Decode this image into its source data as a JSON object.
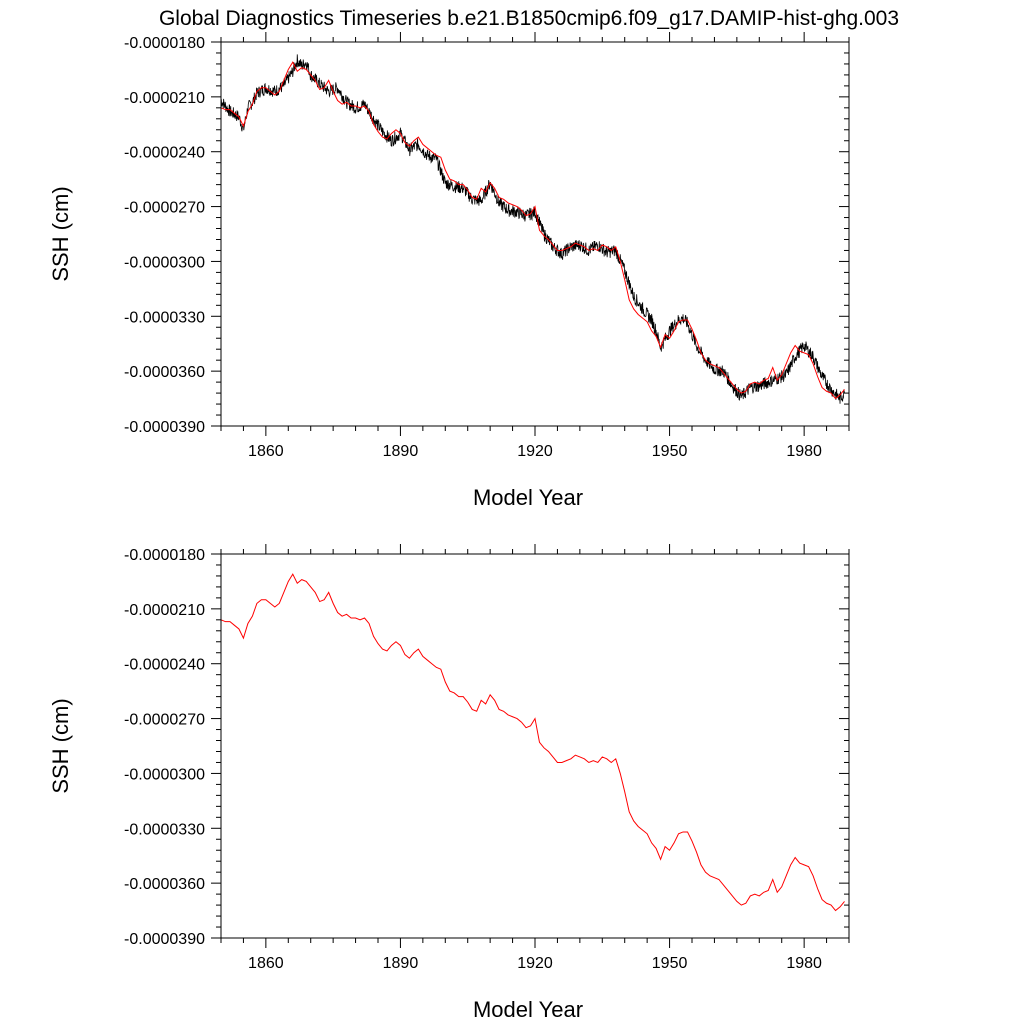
{
  "title": "Global Diagnostics Timeseries b.e21.B1850cmip6.f09_g17.DAMIP-hist-ghg.003",
  "colors": {
    "raw": "#000000",
    "smoothed": "#ff0000",
    "axes": "#000000",
    "background": "#ffffff"
  },
  "chart_data": [
    {
      "type": "line",
      "xlabel": "Model Year",
      "ylabel": "SSH (cm)",
      "xlim": [
        1850,
        1990
      ],
      "ylim": [
        -3.9e-05,
        -1.8e-05
      ],
      "xticks": [
        1860,
        1890,
        1920,
        1950,
        1980
      ],
      "xtick_labels": [
        "1860",
        "1890",
        "1920",
        "1950",
        "1980"
      ],
      "yticks": [
        -1.8e-05,
        -2.1e-05,
        -2.4e-05,
        -2.7e-05,
        -3e-05,
        -3.3e-05,
        -3.6e-05,
        -3.9e-05
      ],
      "ytick_labels": [
        "-0.0000180",
        "-0.0000210",
        "-0.0000240",
        "-0.0000270",
        "-0.0000300",
        "-0.0000330",
        "-0.0000360",
        "-0.0000390"
      ],
      "grid": false,
      "series": [
        {
          "color": "#000000",
          "style": "monthly",
          "x": [
            1850,
            1852,
            1854,
            1855,
            1856,
            1857,
            1858,
            1860,
            1862,
            1864,
            1866,
            1867,
            1868,
            1869,
            1870,
            1872,
            1874,
            1876,
            1878,
            1880,
            1882,
            1884,
            1886,
            1888,
            1890,
            1892,
            1894,
            1896,
            1898,
            1900,
            1902,
            1904,
            1906,
            1908,
            1910,
            1912,
            1914,
            1916,
            1918,
            1920,
            1922,
            1924,
            1926,
            1928,
            1930,
            1932,
            1934,
            1936,
            1938,
            1940,
            1942,
            1944,
            1946,
            1947,
            1948,
            1950,
            1952,
            1953,
            1954,
            1956,
            1958,
            1960,
            1962,
            1964,
            1966,
            1968,
            1970,
            1972,
            1974,
            1976,
            1978,
            1980,
            1982,
            1984,
            1986,
            1988,
            1989
          ],
          "y": [
            -2.12e-05,
            -2.18e-05,
            -2.21e-05,
            -2.28e-05,
            -2.16e-05,
            -2.13e-05,
            -2.08e-05,
            -2.05e-05,
            -2.07e-05,
            -2.04e-05,
            -1.96e-05,
            -1.9e-05,
            -1.93e-05,
            -1.91e-05,
            -1.98e-05,
            -2.03e-05,
            -2.07e-05,
            -2.05e-05,
            -2.13e-05,
            -2.16e-05,
            -2.14e-05,
            -2.22e-05,
            -2.29e-05,
            -2.34e-05,
            -2.3e-05,
            -2.39e-05,
            -2.36e-05,
            -2.42e-05,
            -2.44e-05,
            -2.57e-05,
            -2.59e-05,
            -2.6e-05,
            -2.66e-05,
            -2.67e-05,
            -2.57e-05,
            -2.68e-05,
            -2.72e-05,
            -2.73e-05,
            -2.75e-05,
            -2.73e-05,
            -2.85e-05,
            -2.92e-05,
            -2.96e-05,
            -2.92e-05,
            -2.91e-05,
            -2.94e-05,
            -2.91e-05,
            -2.95e-05,
            -2.94e-05,
            -3.05e-05,
            -3.19e-05,
            -3.26e-05,
            -3.32e-05,
            -3.38e-05,
            -3.47e-05,
            -3.38e-05,
            -3.32e-05,
            -3.31e-05,
            -3.34e-05,
            -3.46e-05,
            -3.54e-05,
            -3.59e-05,
            -3.6e-05,
            -3.68e-05,
            -3.74e-05,
            -3.69e-05,
            -3.68e-05,
            -3.66e-05,
            -3.64e-05,
            -3.62e-05,
            -3.52e-05,
            -3.46e-05,
            -3.52e-05,
            -3.63e-05,
            -3.7e-05,
            -3.75e-05,
            -3.72e-05
          ]
        },
        {
          "color": "#ff0000",
          "style": "annual",
          "x": [
            1850,
            1851,
            1852,
            1853,
            1854,
            1855,
            1856,
            1857,
            1858,
            1859,
            1860,
            1861,
            1862,
            1863,
            1864,
            1865,
            1866,
            1867,
            1868,
            1869,
            1870,
            1871,
            1872,
            1873,
            1874,
            1875,
            1876,
            1877,
            1878,
            1879,
            1880,
            1881,
            1882,
            1883,
            1884,
            1885,
            1886,
            1887,
            1888,
            1889,
            1890,
            1891,
            1892,
            1893,
            1894,
            1895,
            1896,
            1897,
            1898,
            1899,
            1900,
            1901,
            1902,
            1903,
            1904,
            1905,
            1906,
            1907,
            1908,
            1909,
            1910,
            1911,
            1912,
            1913,
            1914,
            1915,
            1916,
            1917,
            1918,
            1919,
            1920,
            1921,
            1922,
            1923,
            1924,
            1925,
            1926,
            1927,
            1928,
            1929,
            1930,
            1931,
            1932,
            1933,
            1934,
            1935,
            1936,
            1937,
            1938,
            1939,
            1940,
            1941,
            1942,
            1943,
            1944,
            1945,
            1946,
            1947,
            1948,
            1949,
            1950,
            1951,
            1952,
            1953,
            1954,
            1955,
            1956,
            1957,
            1958,
            1959,
            1960,
            1961,
            1962,
            1963,
            1964,
            1965,
            1966,
            1967,
            1968,
            1969,
            1970,
            1971,
            1972,
            1973,
            1974,
            1975,
            1976,
            1977,
            1978,
            1979,
            1980,
            1981,
            1982,
            1983,
            1984,
            1985,
            1986,
            1987,
            1988,
            1989
          ],
          "y": [
            -2.16e-05,
            -2.17e-05,
            -2.17e-05,
            -2.19e-05,
            -2.21e-05,
            -2.26e-05,
            -2.18e-05,
            -2.14e-05,
            -2.07e-05,
            -2.05e-05,
            -2.05e-05,
            -2.07e-05,
            -2.09e-05,
            -2.07e-05,
            -2.01e-05,
            -1.95e-05,
            -1.91e-05,
            -1.96e-05,
            -1.94e-05,
            -1.95e-05,
            -1.98e-05,
            -2.01e-05,
            -2.06e-05,
            -2.05e-05,
            -2.01e-05,
            -2.07e-05,
            -2.12e-05,
            -2.14e-05,
            -2.13e-05,
            -2.15e-05,
            -2.15e-05,
            -2.16e-05,
            -2.15e-05,
            -2.18e-05,
            -2.25e-05,
            -2.29e-05,
            -2.32e-05,
            -2.33e-05,
            -2.3e-05,
            -2.28e-05,
            -2.3e-05,
            -2.35e-05,
            -2.37e-05,
            -2.34e-05,
            -2.32e-05,
            -2.36e-05,
            -2.38e-05,
            -2.4e-05,
            -2.42e-05,
            -2.43e-05,
            -2.5e-05,
            -2.55e-05,
            -2.56e-05,
            -2.58e-05,
            -2.58e-05,
            -2.61e-05,
            -2.65e-05,
            -2.66e-05,
            -2.6e-05,
            -2.62e-05,
            -2.57e-05,
            -2.6e-05,
            -2.65e-05,
            -2.66e-05,
            -2.68e-05,
            -2.69e-05,
            -2.7e-05,
            -2.72e-05,
            -2.75e-05,
            -2.74e-05,
            -2.7e-05,
            -2.83e-05,
            -2.86e-05,
            -2.88e-05,
            -2.91e-05,
            -2.94e-05,
            -2.94e-05,
            -2.93e-05,
            -2.92e-05,
            -2.9e-05,
            -2.91e-05,
            -2.92e-05,
            -2.94e-05,
            -2.93e-05,
            -2.94e-05,
            -2.91e-05,
            -2.92e-05,
            -2.94e-05,
            -2.92e-05,
            -3e-05,
            -3.1e-05,
            -3.21e-05,
            -3.26e-05,
            -3.29e-05,
            -3.31e-05,
            -3.33e-05,
            -3.38e-05,
            -3.41e-05,
            -3.47e-05,
            -3.4e-05,
            -3.42e-05,
            -3.38e-05,
            -3.33e-05,
            -3.32e-05,
            -3.32e-05,
            -3.37e-05,
            -3.43e-05,
            -3.5e-05,
            -3.54e-05,
            -3.56e-05,
            -3.57e-05,
            -3.58e-05,
            -3.61e-05,
            -3.64e-05,
            -3.67e-05,
            -3.7e-05,
            -3.72e-05,
            -3.71e-05,
            -3.67e-05,
            -3.66e-05,
            -3.67e-05,
            -3.65e-05,
            -3.64e-05,
            -3.58e-05,
            -3.65e-05,
            -3.62e-05,
            -3.56e-05,
            -3.5e-05,
            -3.46e-05,
            -3.49e-05,
            -3.5e-05,
            -3.51e-05,
            -3.56e-05,
            -3.63e-05,
            -3.69e-05,
            -3.71e-05,
            -3.72e-05,
            -3.75e-05,
            -3.73e-05,
            -3.7e-05
          ]
        }
      ]
    },
    {
      "type": "line",
      "xlabel": "Model Year",
      "ylabel": "SSH (cm)",
      "xlim": [
        1850,
        1990
      ],
      "ylim": [
        -3.9e-05,
        -1.8e-05
      ],
      "xticks": [
        1860,
        1890,
        1920,
        1950,
        1980
      ],
      "xtick_labels": [
        "1860",
        "1890",
        "1920",
        "1950",
        "1980"
      ],
      "yticks": [
        -1.8e-05,
        -2.1e-05,
        -2.4e-05,
        -2.7e-05,
        -3e-05,
        -3.3e-05,
        -3.6e-05,
        -3.9e-05
      ],
      "ytick_labels": [
        "-0.0000180",
        "-0.0000210",
        "-0.0000240",
        "-0.0000270",
        "-0.0000300",
        "-0.0000330",
        "-0.0000360",
        "-0.0000390"
      ],
      "grid": false,
      "series": [
        {
          "color": "#ff0000",
          "style": "annual",
          "x": [
            1850,
            1851,
            1852,
            1853,
            1854,
            1855,
            1856,
            1857,
            1858,
            1859,
            1860,
            1861,
            1862,
            1863,
            1864,
            1865,
            1866,
            1867,
            1868,
            1869,
            1870,
            1871,
            1872,
            1873,
            1874,
            1875,
            1876,
            1877,
            1878,
            1879,
            1880,
            1881,
            1882,
            1883,
            1884,
            1885,
            1886,
            1887,
            1888,
            1889,
            1890,
            1891,
            1892,
            1893,
            1894,
            1895,
            1896,
            1897,
            1898,
            1899,
            1900,
            1901,
            1902,
            1903,
            1904,
            1905,
            1906,
            1907,
            1908,
            1909,
            1910,
            1911,
            1912,
            1913,
            1914,
            1915,
            1916,
            1917,
            1918,
            1919,
            1920,
            1921,
            1922,
            1923,
            1924,
            1925,
            1926,
            1927,
            1928,
            1929,
            1930,
            1931,
            1932,
            1933,
            1934,
            1935,
            1936,
            1937,
            1938,
            1939,
            1940,
            1941,
            1942,
            1943,
            1944,
            1945,
            1946,
            1947,
            1948,
            1949,
            1950,
            1951,
            1952,
            1953,
            1954,
            1955,
            1956,
            1957,
            1958,
            1959,
            1960,
            1961,
            1962,
            1963,
            1964,
            1965,
            1966,
            1967,
            1968,
            1969,
            1970,
            1971,
            1972,
            1973,
            1974,
            1975,
            1976,
            1977,
            1978,
            1979,
            1980,
            1981,
            1982,
            1983,
            1984,
            1985,
            1986,
            1987,
            1988,
            1989
          ],
          "y": [
            -2.16e-05,
            -2.17e-05,
            -2.17e-05,
            -2.19e-05,
            -2.21e-05,
            -2.26e-05,
            -2.18e-05,
            -2.14e-05,
            -2.07e-05,
            -2.05e-05,
            -2.05e-05,
            -2.07e-05,
            -2.09e-05,
            -2.07e-05,
            -2.01e-05,
            -1.95e-05,
            -1.91e-05,
            -1.96e-05,
            -1.94e-05,
            -1.95e-05,
            -1.98e-05,
            -2.01e-05,
            -2.06e-05,
            -2.05e-05,
            -2.01e-05,
            -2.07e-05,
            -2.12e-05,
            -2.14e-05,
            -2.13e-05,
            -2.15e-05,
            -2.15e-05,
            -2.16e-05,
            -2.15e-05,
            -2.18e-05,
            -2.25e-05,
            -2.29e-05,
            -2.32e-05,
            -2.33e-05,
            -2.3e-05,
            -2.28e-05,
            -2.3e-05,
            -2.35e-05,
            -2.37e-05,
            -2.34e-05,
            -2.32e-05,
            -2.36e-05,
            -2.38e-05,
            -2.4e-05,
            -2.42e-05,
            -2.43e-05,
            -2.5e-05,
            -2.55e-05,
            -2.56e-05,
            -2.58e-05,
            -2.58e-05,
            -2.61e-05,
            -2.65e-05,
            -2.66e-05,
            -2.6e-05,
            -2.62e-05,
            -2.57e-05,
            -2.6e-05,
            -2.65e-05,
            -2.66e-05,
            -2.68e-05,
            -2.69e-05,
            -2.7e-05,
            -2.72e-05,
            -2.75e-05,
            -2.74e-05,
            -2.7e-05,
            -2.83e-05,
            -2.86e-05,
            -2.88e-05,
            -2.91e-05,
            -2.94e-05,
            -2.94e-05,
            -2.93e-05,
            -2.92e-05,
            -2.9e-05,
            -2.91e-05,
            -2.92e-05,
            -2.94e-05,
            -2.93e-05,
            -2.94e-05,
            -2.91e-05,
            -2.92e-05,
            -2.94e-05,
            -2.92e-05,
            -3e-05,
            -3.1e-05,
            -3.21e-05,
            -3.26e-05,
            -3.29e-05,
            -3.31e-05,
            -3.33e-05,
            -3.38e-05,
            -3.41e-05,
            -3.47e-05,
            -3.4e-05,
            -3.42e-05,
            -3.38e-05,
            -3.33e-05,
            -3.32e-05,
            -3.32e-05,
            -3.37e-05,
            -3.43e-05,
            -3.5e-05,
            -3.54e-05,
            -3.56e-05,
            -3.57e-05,
            -3.58e-05,
            -3.61e-05,
            -3.64e-05,
            -3.67e-05,
            -3.7e-05,
            -3.72e-05,
            -3.71e-05,
            -3.67e-05,
            -3.66e-05,
            -3.67e-05,
            -3.65e-05,
            -3.64e-05,
            -3.58e-05,
            -3.65e-05,
            -3.62e-05,
            -3.56e-05,
            -3.5e-05,
            -3.46e-05,
            -3.49e-05,
            -3.5e-05,
            -3.51e-05,
            -3.56e-05,
            -3.63e-05,
            -3.69e-05,
            -3.71e-05,
            -3.72e-05,
            -3.75e-05,
            -3.73e-05,
            -3.7e-05
          ]
        }
      ]
    }
  ]
}
